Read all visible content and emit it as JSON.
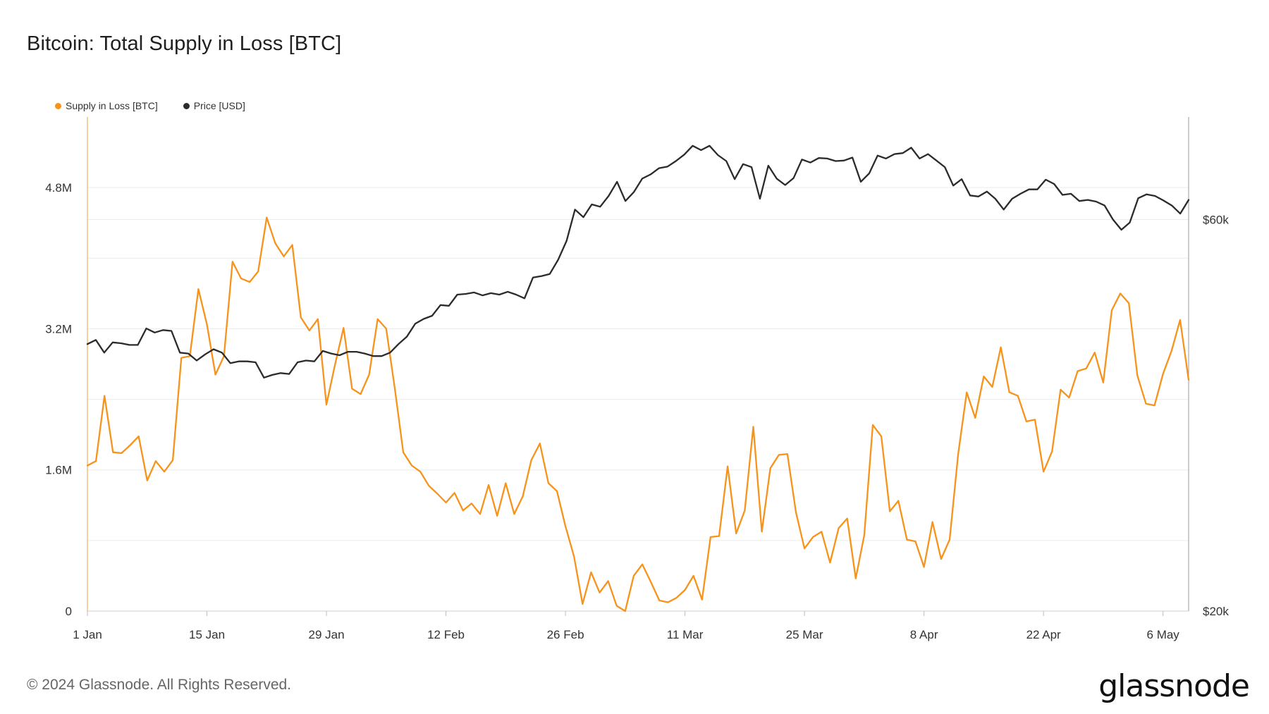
{
  "title": "Bitcoin: Total Supply in Loss [BTC]",
  "footer": "© 2024 Glassnode. All Rights Reserved.",
  "brand": "glassnode",
  "colors": {
    "supply": "#f7931a",
    "price": "#2b2b2b",
    "grid": "#ececec",
    "axis": "#f0c080"
  },
  "chart_data": {
    "type": "line",
    "title": "Bitcoin: Total Supply in Loss [BTC]",
    "legend_position": "top-left",
    "grid": true,
    "x_tick_labels": [
      "1 Jan",
      "15 Jan",
      "29 Jan",
      "12 Feb",
      "26 Feb",
      "11 Mar",
      "25 Mar",
      "8 Apr",
      "22 Apr",
      "6 May"
    ],
    "x_range": [
      "2024-01-01",
      "2024-05-09"
    ],
    "y_left": {
      "ticks": [
        0,
        1600000,
        3200000,
        4800000
      ],
      "tick_labels": [
        "0",
        "1.6M",
        "3.2M",
        "4.8M"
      ],
      "range": [
        0,
        5600000
      ]
    },
    "y_right": {
      "scale": "log",
      "ticks": [
        20000,
        60000
      ],
      "tick_labels": [
        "$20k",
        "$60k"
      ],
      "range": [
        20000,
        80000
      ]
    },
    "series": [
      {
        "name": "Supply in Loss [BTC]",
        "axis": "left",
        "color": "#f7931a",
        "values": [
          1650000,
          1700000,
          2440000,
          1800000,
          1790000,
          1880000,
          1980000,
          1480000,
          1700000,
          1580000,
          1710000,
          2870000,
          2890000,
          3650000,
          3250000,
          2680000,
          2890000,
          3960000,
          3770000,
          3730000,
          3850000,
          4460000,
          4170000,
          4020000,
          4150000,
          3330000,
          3180000,
          3310000,
          2340000,
          2790000,
          3210000,
          2520000,
          2460000,
          2680000,
          3310000,
          3200000,
          2530000,
          1800000,
          1650000,
          1580000,
          1420000,
          1330000,
          1230000,
          1340000,
          1140000,
          1220000,
          1100000,
          1430000,
          1080000,
          1450000,
          1100000,
          1300000,
          1710000,
          1900000,
          1450000,
          1360000,
          960000,
          620000,
          80000,
          440000,
          210000,
          340000,
          60000,
          0,
          400000,
          530000,
          330000,
          120000,
          100000,
          150000,
          240000,
          400000,
          130000,
          840000,
          850000,
          1640000,
          880000,
          1140000,
          2090000,
          900000,
          1620000,
          1770000,
          1780000,
          1120000,
          710000,
          840000,
          900000,
          550000,
          940000,
          1050000,
          370000,
          860000,
          2110000,
          1980000,
          1130000,
          1250000,
          810000,
          790000,
          500000,
          1010000,
          590000,
          810000,
          1780000,
          2480000,
          2190000,
          2660000,
          2540000,
          2990000,
          2480000,
          2440000,
          2150000,
          2170000,
          1580000,
          1810000,
          2510000,
          2420000,
          2720000,
          2750000,
          2930000,
          2590000,
          3410000,
          3600000,
          3490000,
          2670000,
          2350000,
          2330000,
          2690000,
          2950000,
          3300000,
          2620000
        ]
      },
      {
        "name": "Price [USD]",
        "axis": "right",
        "color": "#2b2b2b",
        "values": [
          42300,
          42800,
          41300,
          42500,
          42400,
          42200,
          42200,
          44200,
          43700,
          44000,
          43900,
          41300,
          41200,
          40400,
          41100,
          41700,
          41300,
          40100,
          40300,
          40300,
          40200,
          38500,
          38800,
          39000,
          38900,
          40200,
          40400,
          40300,
          41500,
          41200,
          41000,
          41400,
          41400,
          41200,
          40900,
          40900,
          41300,
          42300,
          43200,
          44800,
          45400,
          45800,
          47200,
          47100,
          48600,
          48700,
          48900,
          48500,
          48800,
          48600,
          49000,
          48600,
          48100,
          51000,
          51200,
          51500,
          53600,
          56500,
          61700,
          60400,
          62600,
          62200,
          64100,
          66700,
          63200,
          64800,
          67300,
          68100,
          69300,
          69600,
          70700,
          72000,
          73800,
          72900,
          73800,
          71900,
          70700,
          67200,
          70100,
          69500,
          63600,
          69800,
          67300,
          66100,
          67400,
          71000,
          70400,
          71300,
          71200,
          70700,
          70800,
          71400,
          66700,
          68300,
          71800,
          71200,
          72100,
          72300,
          73400,
          71200,
          72100,
          70800,
          69500,
          66000,
          67200,
          64200,
          64000,
          64900,
          63600,
          61700,
          63600,
          64500,
          65300,
          65300,
          67100,
          66300,
          64300,
          64500,
          63200,
          63400,
          63100,
          62400,
          60000,
          58300,
          59500,
          63700,
          64400,
          64100,
          63300,
          62400,
          61000,
          63400
        ]
      }
    ]
  }
}
